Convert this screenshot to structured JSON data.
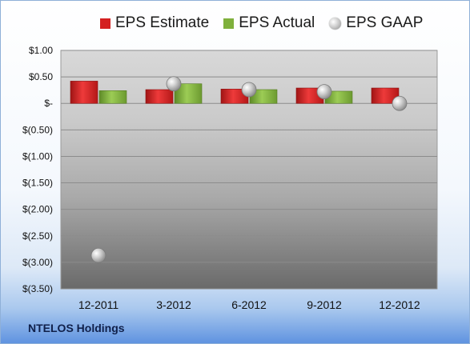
{
  "chart_data": {
    "type": "bar",
    "title": "",
    "categories": [
      "12-2011",
      "3-2012",
      "6-2012",
      "9-2012",
      "12-2012"
    ],
    "series": [
      {
        "name": "EPS Estimate",
        "kind": "bar",
        "color": "#d42020",
        "values": [
          0.42,
          0.26,
          0.27,
          0.29,
          0.29
        ]
      },
      {
        "name": "EPS Actual",
        "kind": "bar",
        "color": "#7fb03c",
        "values": [
          0.24,
          0.37,
          0.26,
          0.23,
          null
        ]
      },
      {
        "name": "EPS GAAP",
        "kind": "marker",
        "color": "#bdbdbd",
        "values": [
          -2.87,
          0.37,
          0.26,
          0.22,
          0.0
        ]
      }
    ],
    "yticks": [
      "$1.00",
      "$0.50",
      "$-",
      "$(0.50)",
      "$(1.00)",
      "$(1.50)",
      "$(2.00)",
      "$(2.50)",
      "$(3.00)",
      "$(3.50)"
    ],
    "ytick_values": [
      1.0,
      0.5,
      0.0,
      -0.5,
      -1.0,
      -1.5,
      -2.0,
      -2.5,
      -3.0,
      -3.5
    ],
    "ylim": [
      -3.5,
      1.0
    ],
    "grid": true,
    "legend_position": "top"
  },
  "company_name": "NTELOS Holdings"
}
